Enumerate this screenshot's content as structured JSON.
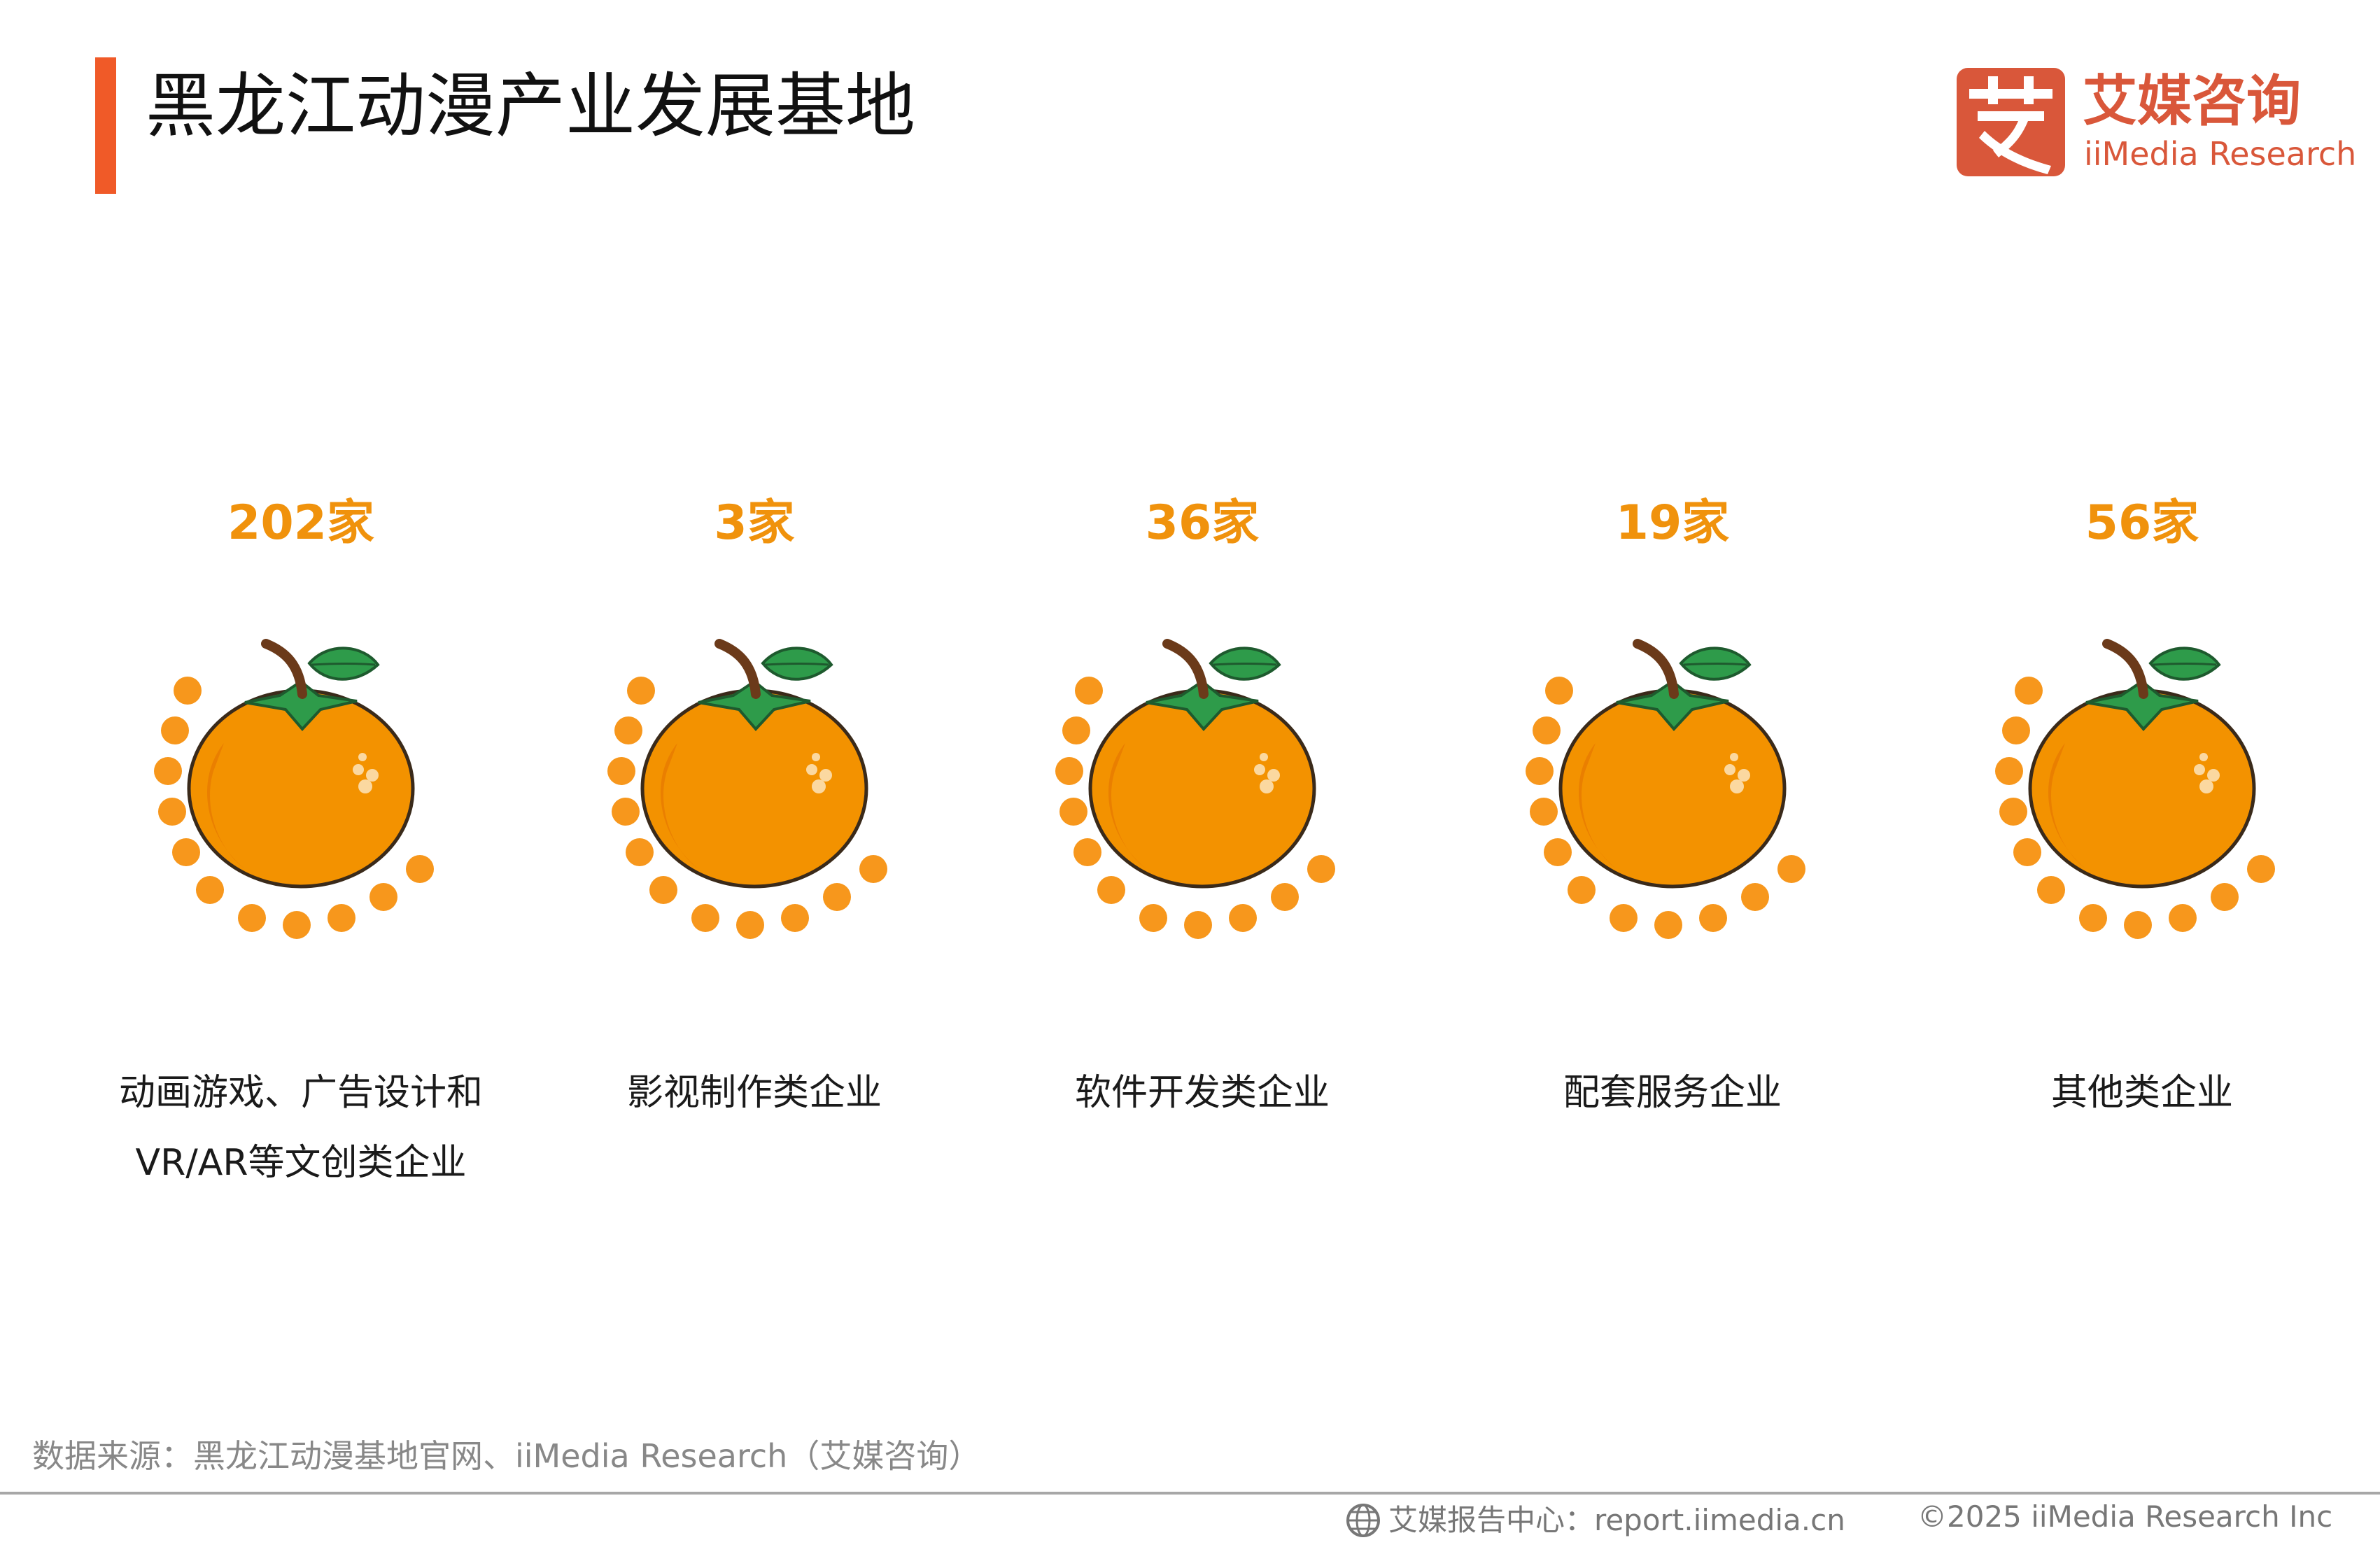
{
  "header": {
    "title": "黑龙江动漫产业发展基地",
    "accent_color": "#f05a28"
  },
  "logo": {
    "mark": "艾",
    "name_cn": "艾媒咨询",
    "name_en": "iiMedia Research",
    "color": "#d9573a"
  },
  "chart_data": {
    "type": "pictograph",
    "unit": "家",
    "icon": "orange-fruit-icon",
    "value_color": "#f0920c",
    "categories": [
      "动画游戏、广告设计和VR/AR等文创类企业",
      "影视制作类企业",
      "软件开发类企业",
      "配套服务企业",
      "其他类企业"
    ],
    "values": [
      202,
      3,
      36,
      19,
      56
    ],
    "value_labels": [
      "202家",
      "3家",
      "36家",
      "19家",
      "56家"
    ],
    "category_lines": [
      [
        "动画游戏、广告设计和",
        "VR/AR等文创类企业"
      ],
      [
        "影视制作类企业"
      ],
      [
        "软件开发类企业"
      ],
      [
        "配套服务企业"
      ],
      [
        "其他类企业"
      ]
    ]
  },
  "footer": {
    "source": "数据来源：黑龙江动漫基地官网、iiMedia Research（艾媒咨询）",
    "report_center": "艾媒报告中心：report.iimedia.cn",
    "copyright": "©2025  iiMedia Research  Inc"
  }
}
